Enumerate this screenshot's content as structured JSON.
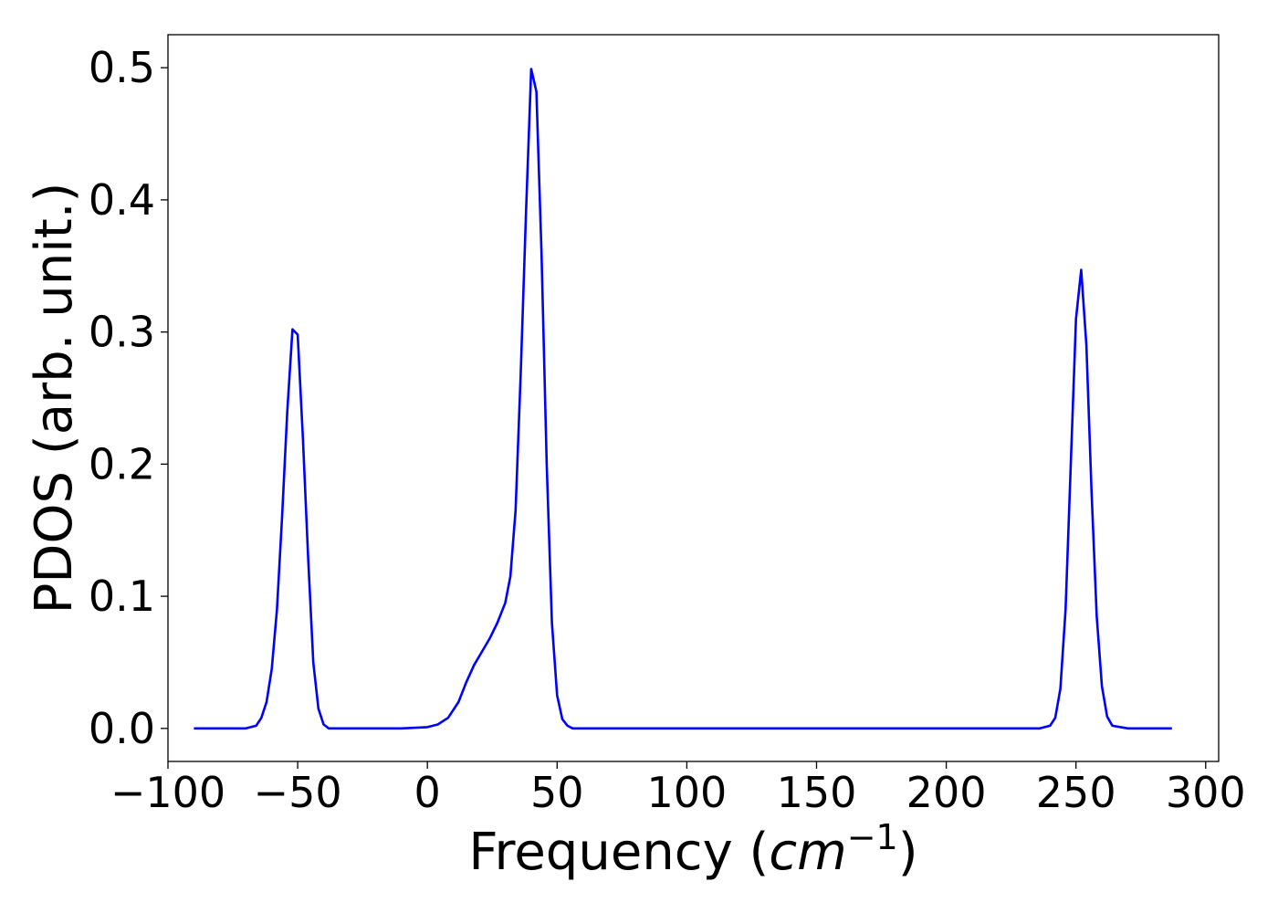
{
  "chart_data": {
    "type": "line",
    "title": "",
    "xlabel": "Frequency (",
    "xlabel_math": "cm",
    "xlabel_sup": "−1",
    "xlabel_close": ")",
    "ylabel": "PDOS (arb. unit.)",
    "xlim": [
      -100,
      305
    ],
    "ylim": [
      -0.025,
      0.525
    ],
    "xticks": [
      -100,
      -50,
      0,
      50,
      100,
      150,
      200,
      250,
      300
    ],
    "xtick_labels": [
      "−100",
      "−50",
      "0",
      "50",
      "100",
      "150",
      "200",
      "250",
      "300"
    ],
    "yticks": [
      0.0,
      0.1,
      0.2,
      0.3,
      0.4,
      0.5
    ],
    "ytick_labels": [
      "0.0",
      "0.1",
      "0.2",
      "0.3",
      "0.4",
      "0.5"
    ],
    "grid": false,
    "legend": "none",
    "series": [
      {
        "color": "#0000ff",
        "x": [
          -90,
          -70,
          -66,
          -64,
          -62,
          -60,
          -58,
          -56,
          -54,
          -52,
          -50,
          -48,
          -46,
          -44,
          -42,
          -40,
          -38,
          -30,
          -10,
          0,
          4,
          8,
          12,
          15,
          18,
          21,
          24,
          27,
          30,
          32,
          34,
          36,
          38,
          40,
          42,
          44,
          46,
          48,
          50,
          52,
          54,
          56,
          60,
          100,
          150,
          200,
          236,
          240,
          242,
          244,
          246,
          248,
          250,
          252,
          254,
          256,
          258,
          260,
          262,
          264,
          270,
          287
        ],
        "y": [
          0.0,
          0.0,
          0.002,
          0.008,
          0.02,
          0.045,
          0.09,
          0.16,
          0.24,
          0.302,
          0.298,
          0.22,
          0.13,
          0.05,
          0.015,
          0.003,
          0.0,
          0.0,
          0.0,
          0.001,
          0.003,
          0.008,
          0.02,
          0.035,
          0.048,
          0.058,
          0.068,
          0.08,
          0.095,
          0.115,
          0.165,
          0.27,
          0.39,
          0.499,
          0.482,
          0.36,
          0.2,
          0.08,
          0.025,
          0.007,
          0.002,
          0.0,
          0.0,
          0.0,
          0.0,
          0.0,
          0.0,
          0.002,
          0.008,
          0.03,
          0.09,
          0.2,
          0.31,
          0.347,
          0.29,
          0.18,
          0.085,
          0.032,
          0.009,
          0.002,
          0.0,
          0.0
        ]
      }
    ]
  }
}
